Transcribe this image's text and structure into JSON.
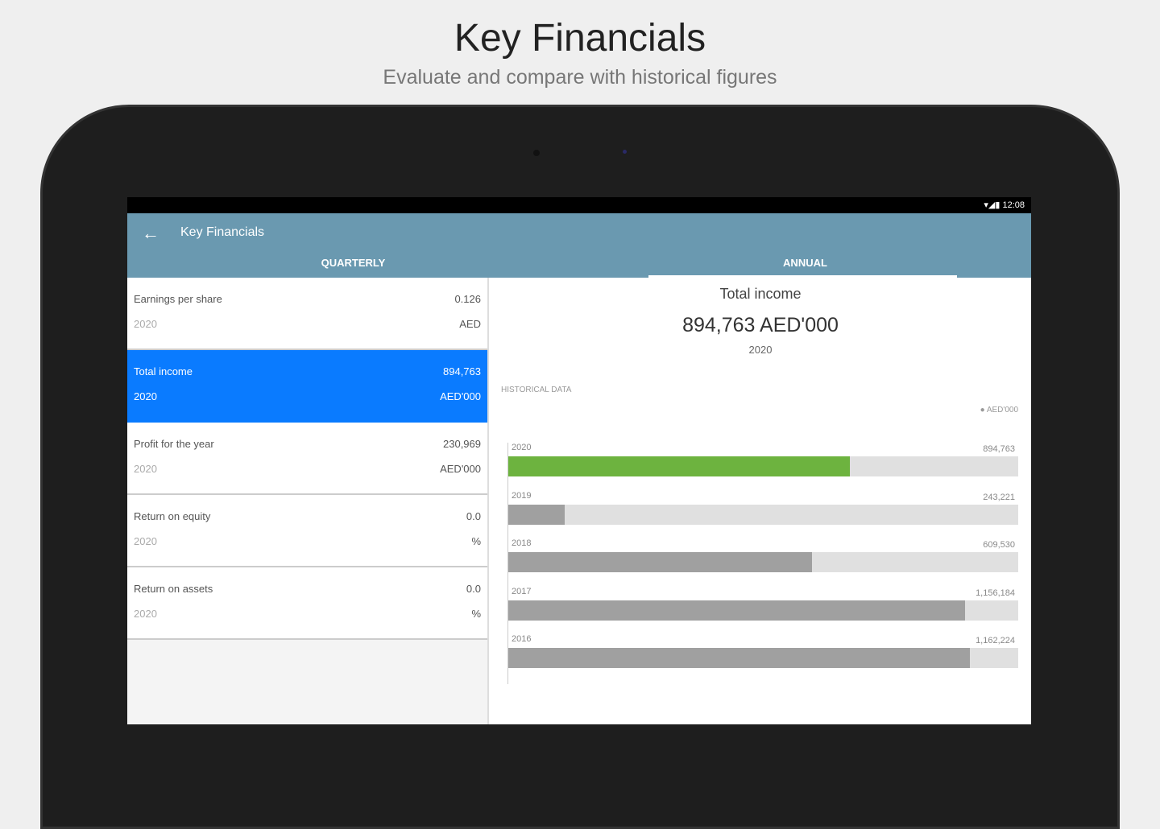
{
  "hero": {
    "title": "Key Financials",
    "subtitle": "Evaluate and compare with historical figures"
  },
  "status_bar": {
    "time": "12:08",
    "icons": [
      "wifi-icon",
      "signal-icon",
      "battery-icon"
    ]
  },
  "app_bar": {
    "title": "Key Financials",
    "back_icon": "arrow-left-icon"
  },
  "tabs": [
    {
      "label": "QUARTERLY",
      "active": false
    },
    {
      "label": "ANNUAL",
      "active": true
    }
  ],
  "metrics": [
    {
      "name": "Earnings per share",
      "year": "2020",
      "value": "0.126",
      "unit": "AED",
      "selected": false
    },
    {
      "name": "Total income",
      "year": "2020",
      "value": "894,763",
      "unit": "AED'000",
      "selected": true
    },
    {
      "name": "Profit for the year",
      "year": "2020",
      "value": "230,969",
      "unit": "AED'000",
      "selected": false
    },
    {
      "name": "Return on equity",
      "year": "2020",
      "value": "0.0",
      "unit": "%",
      "selected": false
    },
    {
      "name": "Return on assets",
      "year": "2020",
      "value": "0.0",
      "unit": "%",
      "selected": false
    }
  ],
  "detail": {
    "title": "Total income",
    "value": "894,763 AED'000",
    "year": "2020",
    "historical_label": "HISTORICAL DATA",
    "legend": "AED'000"
  },
  "chart_data": {
    "type": "bar",
    "orientation": "horizontal",
    "categories": [
      "2020",
      "2019",
      "2018",
      "2017",
      "2016"
    ],
    "values": [
      894763,
      243221,
      609530,
      1156184,
      1162224
    ],
    "labels": [
      "894,763",
      "243,221",
      "609,530",
      "1,156,184",
      "1,162,224"
    ],
    "fill_percent": [
      67,
      11,
      59.5,
      89.5,
      90.5
    ],
    "highlight": "2020",
    "colors": {
      "highlight": "#6db33f",
      "default": "#a0a0a0",
      "track": "#e0e0e0"
    },
    "legend": "AED'000"
  }
}
